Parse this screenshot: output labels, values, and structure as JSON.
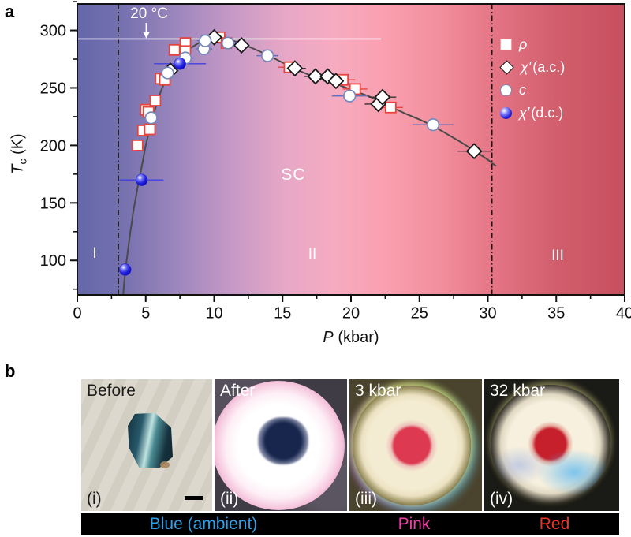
{
  "panel_a": {
    "label": "a",
    "annotations": {
      "temp_line": "20 °C",
      "sc": "SC",
      "region_1": "I",
      "region_2": "II",
      "region_3": "III"
    },
    "x_axis": {
      "label_italic": "P",
      "label_rest": " (kbar)"
    },
    "y_axis": {
      "label_italic": "T",
      "label_sub": "c",
      "label_rest": " (K)"
    },
    "legend": [
      {
        "marker": "square",
        "symbol": "ρ",
        "suffix": ""
      },
      {
        "marker": "diamond",
        "symbol": "χ′",
        "suffix": " (a.c.)"
      },
      {
        "marker": "circle",
        "symbol": "c",
        "suffix": ""
      },
      {
        "marker": "sphere",
        "symbol": "χ′",
        "suffix": " (d.c.)"
      }
    ]
  },
  "chart_data": {
    "type": "scatter",
    "xlabel": "P (kbar)",
    "ylabel": "Tc (K)",
    "xlim": [
      0,
      40
    ],
    "t_range": [
      70,
      323
    ],
    "xticks": [
      0,
      5,
      10,
      15,
      20,
      25,
      30,
      35,
      40
    ],
    "xminor_step": 2.5,
    "yticks": [
      100,
      150,
      200,
      250,
      300
    ],
    "yminor_step": 25,
    "room_temp_line": {
      "T": 292.5,
      "label": "20 °C",
      "x_start": 0,
      "x_end": 22.2
    },
    "phase_boundaries_kbar": [
      3.0,
      30.3
    ],
    "regions": [
      "I",
      "II",
      "III"
    ],
    "sc_label": "SC",
    "legend_position": "upper right",
    "series": [
      {
        "name": "ρ",
        "key": "rho",
        "marker": "square",
        "edge_color": "#e8443c",
        "err_color": "#e8443c",
        "points": [
          [
            4.4,
            200,
            0.3
          ],
          [
            4.8,
            213,
            0.3
          ],
          [
            5.3,
            214,
            0.3
          ],
          [
            5.0,
            231,
            0.3
          ],
          [
            5.2,
            229,
            0.3
          ],
          [
            5.7,
            239,
            0.3
          ],
          [
            6.1,
            258,
            0.4
          ],
          [
            6.4,
            257,
            0.4
          ],
          [
            7.1,
            283,
            0.4
          ],
          [
            7.9,
            289,
            0.4
          ],
          [
            7.9,
            282,
            0.4
          ],
          [
            10.4,
            294,
            0.5
          ],
          [
            10.9,
            289,
            0.5
          ],
          [
            15.5,
            268,
            0.8
          ],
          [
            19.4,
            257,
            0.9
          ],
          [
            20.3,
            249,
            0.9
          ],
          [
            22.9,
            233,
            0.9
          ]
        ]
      },
      {
        "name": "χ′ (a.c.)",
        "key": "chi_ac",
        "marker": "diamond",
        "edge_color": "#191919",
        "err_color": "#333333",
        "points": [
          [
            6.8,
            265,
            0.5
          ],
          [
            10.0,
            294,
            0.5
          ],
          [
            12.0,
            287,
            0.5
          ],
          [
            15.9,
            267,
            0.8
          ],
          [
            17.4,
            260,
            0.8
          ],
          [
            18.3,
            260,
            0.8
          ],
          [
            18.9,
            256,
            0.9
          ],
          [
            22.0,
            236,
            1.0
          ],
          [
            22.3,
            242,
            1.0
          ],
          [
            29.0,
            195,
            1.2
          ]
        ]
      },
      {
        "name": "c",
        "key": "c",
        "marker": "circle",
        "edge_color": "#7788bb",
        "err_color": "#5c6fc0",
        "points": [
          [
            5.4,
            224,
            0.5
          ],
          [
            6.6,
            263,
            0.5
          ],
          [
            7.9,
            276,
            0.6
          ],
          [
            9.25,
            284,
            0.6
          ],
          [
            9.35,
            291,
            0.6
          ],
          [
            11.0,
            289,
            0.7
          ],
          [
            13.9,
            278,
            0.8
          ],
          [
            19.9,
            243,
            1.3
          ],
          [
            26.0,
            218,
            1.5
          ]
        ]
      },
      {
        "name": "χ′ (d.c.)",
        "key": "chi_dc",
        "marker": "sphere",
        "edge_color": "#2222cc",
        "err_color": "#4040e0",
        "points": [
          [
            3.5,
            92,
            0.4
          ],
          [
            4.7,
            170,
            1.6
          ],
          [
            7.5,
            271,
            1.9
          ]
        ]
      }
    ],
    "fit_curve": [
      [
        3.35,
        70
      ],
      [
        3.5,
        90
      ],
      [
        3.8,
        118
      ],
      [
        4.1,
        143
      ],
      [
        4.4,
        163
      ],
      [
        4.7,
        181
      ],
      [
        5.0,
        200
      ],
      [
        5.3,
        215
      ],
      [
        5.7,
        232
      ],
      [
        6.1,
        247
      ],
      [
        6.5,
        258
      ],
      [
        7.0,
        268
      ],
      [
        7.6,
        277
      ],
      [
        8.2,
        284
      ],
      [
        9.0,
        290
      ],
      [
        9.7,
        293
      ],
      [
        10.3,
        294
      ],
      [
        11,
        292.5
      ],
      [
        12,
        288.5
      ],
      [
        13,
        283.5
      ],
      [
        14,
        278
      ],
      [
        15,
        272
      ],
      [
        16,
        266
      ],
      [
        17,
        261
      ],
      [
        18,
        257
      ],
      [
        19,
        253
      ],
      [
        20,
        248.5
      ],
      [
        21,
        244
      ],
      [
        22,
        239.5
      ],
      [
        23,
        233
      ],
      [
        24,
        227.5
      ],
      [
        25,
        222.5
      ],
      [
        26,
        217
      ],
      [
        27,
        210
      ],
      [
        28,
        203
      ],
      [
        29,
        195.5
      ],
      [
        30,
        187.5
      ],
      [
        30.6,
        182
      ]
    ]
  },
  "panel_b": {
    "label": "b",
    "photos": [
      {
        "title": "Before",
        "roman": "(i)"
      },
      {
        "title": "After",
        "roman": "(ii)"
      },
      {
        "title": "3 kbar",
        "roman": "(iii)"
      },
      {
        "title": "32 kbar",
        "roman": "(iv)"
      }
    ],
    "color_bar": {
      "labels": [
        {
          "text": "Blue (ambient)",
          "color": "#2b9fe8"
        },
        {
          "text": "Pink",
          "color": "#ee3fa8"
        },
        {
          "text": "Red",
          "color": "#ee3428"
        }
      ]
    }
  },
  "colors": {
    "curve": "#4a4a4a",
    "frame": "#111111",
    "room_temp_line": "#ffffff",
    "bg_gradient_left": "#6467a9",
    "bg_gradient_mid": "#f6abc0",
    "bg_gradient_right": "#c74f5e"
  }
}
